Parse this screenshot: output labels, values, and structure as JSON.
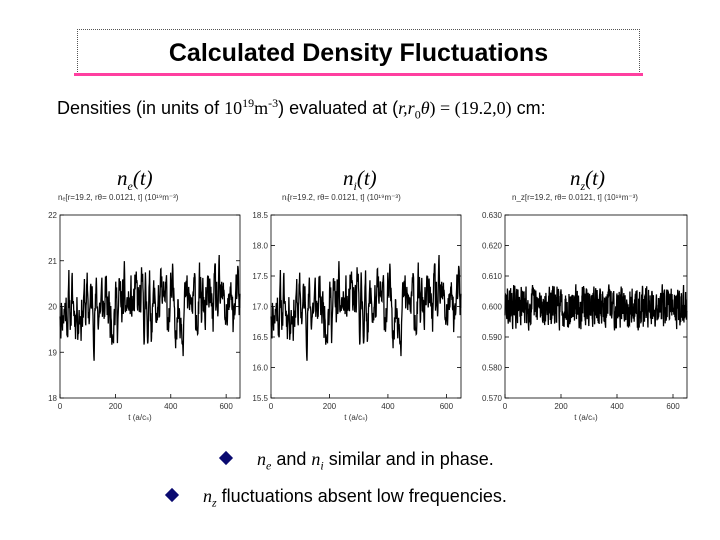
{
  "title": "Calculated Density Fluctuations",
  "subtitle": {
    "prefix": "Densities (in units of ",
    "base": "10",
    "exp": "19",
    "unit": "m",
    "unit_exp": "-3",
    "mid": ") evaluated at (",
    "coords": "r,r",
    "coord_sub": "0",
    "theta": "θ",
    "eq": ") = (19.2,0)",
    "suffix": " cm:"
  },
  "panels": [
    {
      "sym": "n",
      "sub": "e",
      "arg": "(t)",
      "head": "nₑ[r=19.2, rθ= 0.0121, t] (10¹⁹m⁻³)"
    },
    {
      "sym": "n",
      "sub": "i",
      "arg": "(t)",
      "head": "nᵢ[r=19.2, rθ= 0.0121, t] (10¹⁹m⁻³)"
    },
    {
      "sym": "n",
      "sub": "z",
      "arg": "(t)",
      "head": "n_z[r=19.2, rθ= 0.0121, t] (10¹⁹m⁻³)"
    }
  ],
  "bullets": [
    {
      "parts": [
        "n",
        "e",
        " and ",
        "n",
        "i",
        " similar and in phase."
      ]
    },
    {
      "parts": [
        "n",
        "z",
        " fluctuations absent low frequencies."
      ]
    }
  ],
  "chart_data": [
    {
      "type": "line",
      "name": "n_e(t)",
      "xlabel": "t (a/cₛ)",
      "ylabel": "",
      "xlim": [
        0,
        650
      ],
      "ylim": [
        18,
        22
      ],
      "xticks": [
        0,
        200,
        400,
        600
      ],
      "yticks": [
        18,
        19,
        20,
        21,
        22
      ],
      "ytick_labels": [
        "18",
        "19",
        "20",
        "21",
        "22"
      ],
      "mean": 20.0,
      "amplitude": 1.0,
      "seed": 11,
      "noise": "low-frequency",
      "color": "#000000"
    },
    {
      "type": "line",
      "name": "n_i(t)",
      "xlabel": "t (a/cₛ)",
      "ylabel": "",
      "xlim": [
        0,
        650
      ],
      "ylim": [
        15.5,
        18.5
      ],
      "xticks": [
        0,
        200,
        400,
        600
      ],
      "yticks": [
        15.5,
        16.0,
        16.5,
        17.0,
        17.5,
        18.0,
        18.5
      ],
      "ytick_labels": [
        "15.5",
        "16.0",
        "16.5",
        "17.0",
        "17.5",
        "18.0",
        "18.5"
      ],
      "mean": 17.0,
      "amplitude": 0.75,
      "seed": 11,
      "noise": "low-frequency",
      "color": "#000000"
    },
    {
      "type": "line",
      "name": "n_z(t)",
      "xlabel": "t (a/cₛ)",
      "ylabel": "",
      "xlim": [
        0,
        650
      ],
      "ylim": [
        0.57,
        0.63
      ],
      "xticks": [
        0,
        200,
        400,
        600
      ],
      "yticks": [
        0.57,
        0.58,
        0.59,
        0.6,
        0.61,
        0.62,
        0.63
      ],
      "ytick_labels": [
        "0.570",
        "0.580",
        "0.590",
        "0.600",
        "0.610",
        "0.620",
        "0.630"
      ],
      "mean": 0.6,
      "amplitude": 0.008,
      "seed": 29,
      "noise": "high-frequency",
      "color": "#000000"
    }
  ]
}
